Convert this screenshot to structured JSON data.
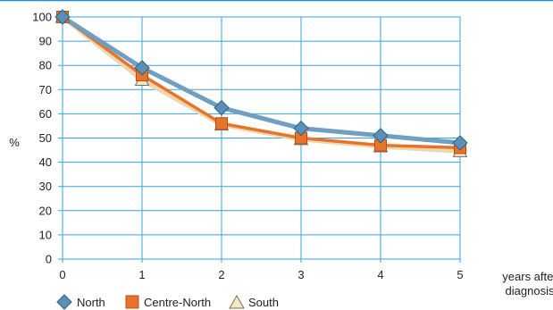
{
  "chart_data": {
    "type": "line",
    "title": "",
    "ylabel": "%",
    "xlabel_lines": [
      "years after",
      "diagnosis"
    ],
    "x": [
      0,
      1,
      2,
      3,
      4,
      5
    ],
    "x_tick_labels": [
      "0",
      "1",
      "2",
      "3",
      "4",
      "5"
    ],
    "y_tick_labels": [
      "0",
      "10",
      "20",
      "30",
      "40",
      "50",
      "60",
      "70",
      "80",
      "90",
      "100"
    ],
    "xlim": [
      0,
      5
    ],
    "ylim": [
      0,
      100
    ],
    "grid": true,
    "legend_position": "bottom-left",
    "series": [
      {
        "name": "North",
        "values": [
          100,
          79,
          62.5,
          54,
          51,
          48
        ],
        "color": "#6f9fc2",
        "marker": "diamond",
        "marker_color": "#5b8fb6"
      },
      {
        "name": "Centre-North",
        "values": [
          100,
          76,
          56,
          50,
          47,
          46
        ],
        "color": "#e8732a",
        "marker": "square",
        "marker_color": "#e8732a"
      },
      {
        "name": "South",
        "values": [
          100,
          74,
          55.5,
          49.5,
          46.5,
          44.5
        ],
        "color": "#ead9b0",
        "marker": "triangle",
        "marker_color": "#f3e8c4"
      }
    ]
  },
  "colors": {
    "frame": "#1e8fd0",
    "grid": "#35a5dc",
    "text": "#222222"
  }
}
